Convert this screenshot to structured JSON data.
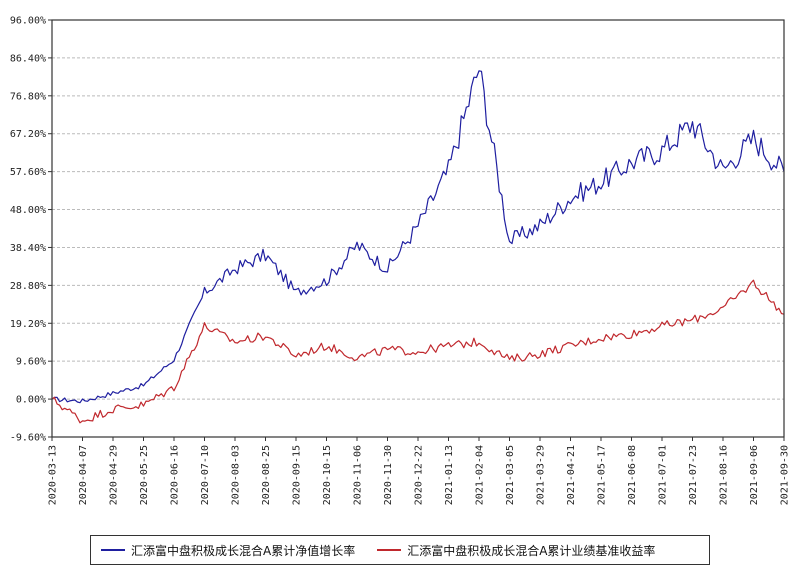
{
  "chart_data": {
    "type": "line",
    "title": "",
    "xlabel": "",
    "ylabel": "",
    "ylim": [
      -9.6,
      96.0
    ],
    "y_ticks": [
      "96.00%",
      "86.40%",
      "76.80%",
      "67.20%",
      "57.60%",
      "48.00%",
      "38.40%",
      "28.80%",
      "19.20%",
      "9.60%",
      "0.00%",
      "-9.60%"
    ],
    "y_tick_values": [
      96.0,
      86.4,
      76.8,
      67.2,
      57.6,
      48.0,
      38.4,
      28.8,
      19.2,
      9.6,
      0.0,
      -9.6
    ],
    "x_ticks": [
      "2020-03-13",
      "2020-04-07",
      "2020-04-29",
      "2020-05-25",
      "2020-06-16",
      "2020-07-10",
      "2020-08-03",
      "2020-08-25",
      "2020-09-15",
      "2020-10-15",
      "2020-11-06",
      "2020-11-30",
      "2020-12-22",
      "2021-01-13",
      "2021-02-04",
      "2021-03-05",
      "2021-03-29",
      "2021-04-21",
      "2021-05-17",
      "2021-06-08",
      "2021-07-01",
      "2021-07-23",
      "2021-08-16",
      "2021-09-06",
      "2021-09-30"
    ],
    "grid": true,
    "grid_style": "dashed horizontal",
    "legend_position": "bottom",
    "categories": [
      "2020-03-13",
      "2020-04-07",
      "2020-04-29",
      "2020-05-25",
      "2020-06-16",
      "2020-07-10",
      "2020-08-03",
      "2020-08-25",
      "2020-09-15",
      "2020-10-15",
      "2020-11-06",
      "2020-11-30",
      "2020-12-22",
      "2021-01-13",
      "2021-02-04",
      "2021-03-05",
      "2021-03-29",
      "2021-04-21",
      "2021-05-17",
      "2021-06-08",
      "2021-07-01",
      "2021-07-23",
      "2021-08-16",
      "2021-09-06",
      "2021-09-30"
    ],
    "series": [
      {
        "name": "汇添富中盘积极成长混合A累计净值增长率",
        "color": "#1f1fa0",
        "values": [
          0.0,
          -0.5,
          1.5,
          3.5,
          10.0,
          27.0,
          33.0,
          36.5,
          27.0,
          30.0,
          39.0,
          33.0,
          44.0,
          58.0,
          84.0,
          40.0,
          44.0,
          51.0,
          55.0,
          60.0,
          63.0,
          70.0,
          58.0,
          66.0,
          57.6
        ]
      },
      {
        "name": "汇添富中盘积极成长混合A累计业绩基准收益率",
        "color": "#c0282d",
        "values": [
          0.0,
          -5.5,
          -2.5,
          -1.5,
          3.0,
          18.5,
          14.5,
          16.0,
          11.0,
          13.5,
          10.5,
          12.5,
          12.0,
          13.5,
          14.5,
          10.0,
          11.5,
          13.5,
          15.5,
          16.5,
          18.5,
          20.0,
          23.0,
          29.5,
          21.5
        ]
      }
    ]
  },
  "legend": {
    "items": [
      {
        "label": "汇添富中盘积极成长混合A累计净值增长率",
        "color": "#1f1fa0"
      },
      {
        "label": "汇添富中盘积极成长混合A累计业绩基准收益率",
        "color": "#c0282d"
      }
    ]
  }
}
